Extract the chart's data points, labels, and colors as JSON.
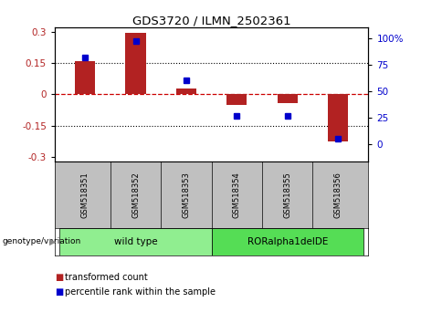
{
  "title": "GDS3720 / ILMN_2502361",
  "samples": [
    "GSM518351",
    "GSM518352",
    "GSM518353",
    "GSM518354",
    "GSM518355",
    "GSM518356"
  ],
  "bar_values": [
    0.158,
    0.295,
    0.028,
    -0.048,
    -0.042,
    -0.225
  ],
  "dot_values_pct": [
    82,
    97,
    60,
    27,
    27,
    5
  ],
  "ylim_left": [
    -0.32,
    0.32
  ],
  "yticks_left": [
    -0.3,
    -0.15,
    0,
    0.15,
    0.3
  ],
  "ylim_right": [
    -16.0,
    110.0
  ],
  "yticks_right": [
    0,
    25,
    50,
    75,
    100
  ],
  "yticklabels_right": [
    "0",
    "25",
    "50",
    "75",
    "100%"
  ],
  "bar_color": "#B22222",
  "dot_color": "#0000CC",
  "zero_line_color": "#CC0000",
  "hline_color": "#000000",
  "groups": [
    {
      "label": "wild type",
      "indices": [
        0,
        1,
        2
      ]
    },
    {
      "label": "RORalpha1delDE",
      "indices": [
        3,
        4,
        5
      ]
    }
  ],
  "group_colors": [
    "#90EE90",
    "#55DD55"
  ],
  "group_label": "genotype/variation",
  "legend_bar_label": "transformed count",
  "legend_dot_label": "percentile rank within the sample",
  "bg_color": "#FFFFFF",
  "tick_area_bg": "#C0C0C0",
  "bar_width": 0.4
}
